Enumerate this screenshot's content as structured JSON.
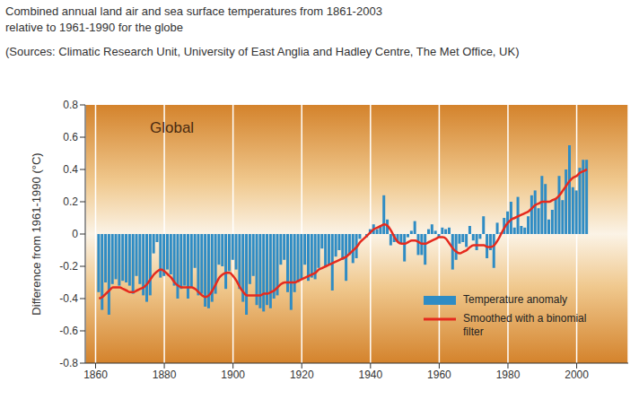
{
  "chart_data": {
    "type": "bar",
    "title": "Combined annual land air and sea surface temperatures from 1861-2003\nrelative to 1961-1990 for the globe",
    "subtitle": "(Sources: Climatic Research Unit, University of East Anglia and Hadley Centre, The Met Office, UK)",
    "annotation": "Global",
    "y_label": "Difference from 1961-1990 (°C)",
    "x": [
      1861,
      1862,
      1863,
      1864,
      1865,
      1866,
      1867,
      1868,
      1869,
      1870,
      1871,
      1872,
      1873,
      1874,
      1875,
      1876,
      1877,
      1878,
      1879,
      1880,
      1881,
      1882,
      1883,
      1884,
      1885,
      1886,
      1887,
      1888,
      1889,
      1890,
      1891,
      1892,
      1893,
      1894,
      1895,
      1896,
      1897,
      1898,
      1899,
      1900,
      1901,
      1902,
      1903,
      1904,
      1905,
      1906,
      1907,
      1908,
      1909,
      1910,
      1911,
      1912,
      1913,
      1914,
      1915,
      1916,
      1917,
      1918,
      1919,
      1920,
      1921,
      1922,
      1923,
      1924,
      1925,
      1926,
      1927,
      1928,
      1929,
      1930,
      1931,
      1932,
      1933,
      1934,
      1935,
      1936,
      1937,
      1938,
      1939,
      1940,
      1941,
      1942,
      1943,
      1944,
      1945,
      1946,
      1947,
      1948,
      1949,
      1950,
      1951,
      1952,
      1953,
      1954,
      1955,
      1956,
      1957,
      1958,
      1959,
      1960,
      1961,
      1962,
      1963,
      1964,
      1965,
      1966,
      1967,
      1968,
      1969,
      1970,
      1971,
      1972,
      1973,
      1974,
      1975,
      1976,
      1977,
      1978,
      1979,
      1980,
      1981,
      1982,
      1983,
      1984,
      1985,
      1986,
      1987,
      1988,
      1989,
      1990,
      1991,
      1992,
      1993,
      1994,
      1995,
      1996,
      1997,
      1998,
      1999,
      2000,
      2001,
      2002,
      2003
    ],
    "series": [
      {
        "name": "Temperature anomaly",
        "type": "bar",
        "color": "#2f8cc4",
        "values": [
          -0.36,
          -0.47,
          -0.3,
          -0.5,
          -0.31,
          -0.28,
          -0.32,
          -0.29,
          -0.3,
          -0.32,
          -0.37,
          -0.26,
          -0.31,
          -0.38,
          -0.42,
          -0.38,
          -0.12,
          -0.05,
          -0.27,
          -0.26,
          -0.22,
          -0.25,
          -0.32,
          -0.4,
          -0.34,
          -0.32,
          -0.4,
          -0.33,
          -0.21,
          -0.38,
          -0.37,
          -0.45,
          -0.46,
          -0.42,
          -0.37,
          -0.19,
          -0.2,
          -0.34,
          -0.23,
          -0.16,
          -0.22,
          -0.34,
          -0.42,
          -0.5,
          -0.31,
          -0.26,
          -0.44,
          -0.46,
          -0.48,
          -0.44,
          -0.46,
          -0.4,
          -0.38,
          -0.19,
          -0.16,
          -0.36,
          -0.47,
          -0.36,
          -0.3,
          -0.28,
          -0.19,
          -0.29,
          -0.27,
          -0.28,
          -0.21,
          -0.09,
          -0.2,
          -0.19,
          -0.35,
          -0.14,
          -0.1,
          -0.16,
          -0.29,
          -0.13,
          -0.18,
          -0.15,
          -0.03,
          0.0,
          -0.02,
          0.03,
          0.06,
          0.03,
          0.05,
          0.24,
          0.09,
          -0.07,
          -0.05,
          -0.05,
          -0.06,
          -0.17,
          -0.02,
          0.02,
          0.08,
          -0.13,
          -0.13,
          -0.19,
          0.03,
          0.06,
          0.02,
          -0.02,
          0.04,
          0.03,
          0.04,
          -0.22,
          -0.16,
          -0.06,
          -0.05,
          -0.08,
          0.05,
          -0.04,
          -0.1,
          -0.03,
          0.11,
          -0.15,
          -0.1,
          -0.21,
          0.07,
          0.01,
          0.1,
          0.14,
          0.2,
          0.04,
          0.23,
          0.05,
          0.04,
          0.11,
          0.24,
          0.27,
          0.16,
          0.36,
          0.31,
          0.09,
          0.15,
          0.22,
          0.36,
          0.21,
          0.4,
          0.55,
          0.29,
          0.27,
          0.41,
          0.46,
          0.46
        ]
      },
      {
        "name": "Smoothed with a binomial filter",
        "type": "line",
        "color": "#e52a1e",
        "values": [
          -0.4,
          -0.39,
          -0.37,
          -0.35,
          -0.33,
          -0.33,
          -0.33,
          -0.34,
          -0.35,
          -0.36,
          -0.36,
          -0.35,
          -0.34,
          -0.33,
          -0.31,
          -0.28,
          -0.25,
          -0.23,
          -0.22,
          -0.23,
          -0.25,
          -0.27,
          -0.3,
          -0.32,
          -0.33,
          -0.33,
          -0.33,
          -0.33,
          -0.34,
          -0.36,
          -0.38,
          -0.39,
          -0.38,
          -0.35,
          -0.31,
          -0.27,
          -0.25,
          -0.24,
          -0.24,
          -0.26,
          -0.29,
          -0.33,
          -0.36,
          -0.38,
          -0.38,
          -0.38,
          -0.38,
          -0.38,
          -0.37,
          -0.37,
          -0.36,
          -0.35,
          -0.33,
          -0.31,
          -0.3,
          -0.3,
          -0.3,
          -0.3,
          -0.29,
          -0.28,
          -0.27,
          -0.26,
          -0.25,
          -0.24,
          -0.22,
          -0.21,
          -0.2,
          -0.19,
          -0.18,
          -0.17,
          -0.16,
          -0.15,
          -0.14,
          -0.12,
          -0.1,
          -0.08,
          -0.05,
          -0.03,
          -0.01,
          0.01,
          0.03,
          0.04,
          0.05,
          0.06,
          0.05,
          0.02,
          -0.02,
          -0.05,
          -0.06,
          -0.06,
          -0.05,
          -0.04,
          -0.04,
          -0.05,
          -0.06,
          -0.06,
          -0.05,
          -0.04,
          -0.03,
          -0.02,
          -0.02,
          -0.03,
          -0.06,
          -0.09,
          -0.11,
          -0.12,
          -0.11,
          -0.1,
          -0.08,
          -0.07,
          -0.07,
          -0.07,
          -0.07,
          -0.08,
          -0.08,
          -0.07,
          -0.04,
          0.0,
          0.04,
          0.07,
          0.09,
          0.1,
          0.11,
          0.12,
          0.13,
          0.14,
          0.16,
          0.18,
          0.19,
          0.2,
          0.2,
          0.2,
          0.21,
          0.22,
          0.24,
          0.27,
          0.3,
          0.33,
          0.35,
          0.36,
          0.38,
          0.39,
          0.4
        ]
      }
    ],
    "xlim": [
      1857,
      2015
    ],
    "xticks": [
      1860,
      1880,
      1900,
      1920,
      1940,
      1960,
      1980,
      2000
    ],
    "ylim": [
      -0.8,
      0.8
    ],
    "yticks": [
      -0.8,
      -0.6,
      -0.4,
      -0.2,
      0,
      0.2,
      0.4,
      0.6,
      0.8
    ],
    "grid": true,
    "legend": "lower right"
  }
}
